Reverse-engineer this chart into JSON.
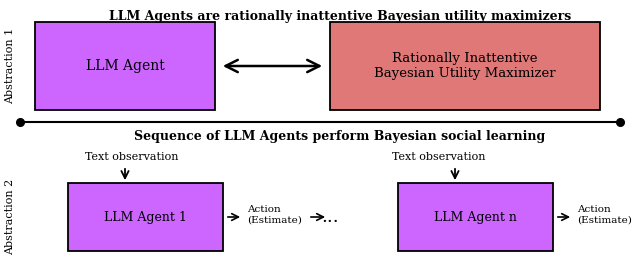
{
  "title1": "LLM Agents are rationally inattentive Bayesian utility maximizers",
  "title2": "Sequence of LLM Agents perform Bayesian social learning",
  "box1_label": "LLM Agent",
  "box2_label": "Rationally Inattentive\nBayesian Utility Maximizer",
  "box3_label": "LLM Agent 1",
  "box4_label": "LLM Agent n",
  "box1_color": "#cc66ff",
  "box2_color": "#e07878",
  "box3_color": "#cc66ff",
  "box4_color": "#cc66ff",
  "box_edgecolor": "#000000",
  "line_color": "#000000",
  "abstraction1_label": "Abstraction 1",
  "abstraction2_label": "Abstraction 2",
  "text_obs": "Text observation",
  "action_label": "Action\n(Estimate)",
  "dots": "...",
  "bg_color": "#ffffff",
  "title_fontsize": 9.0,
  "label_fontsize": 9.0,
  "small_fontsize": 8.0
}
